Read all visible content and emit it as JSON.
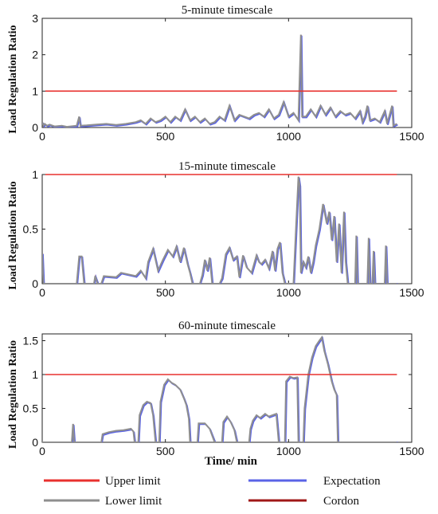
{
  "colors": {
    "upper": "#e8302e",
    "expectation": "#5a63e6",
    "lower": "#8f8f8f",
    "cordon": "#a01818"
  },
  "legend": {
    "upper": "Upper limit",
    "expectation": "Expectation",
    "lower": "Lower limit",
    "cordon": "Cordon"
  },
  "chart_data": [
    {
      "type": "line",
      "title": "5-minute timescale",
      "ylabel": "Load Regulation Ratio",
      "xlabel": "",
      "xlim": [
        0,
        1500
      ],
      "ylim": [
        0,
        3
      ],
      "xticks": [
        "0",
        "500",
        "1000",
        "1500"
      ],
      "yticks": [
        "0",
        "1",
        "2",
        "3"
      ],
      "threshold": 1,
      "series_points": [
        [
          0,
          0.15
        ],
        [
          5,
          0.05
        ],
        [
          10,
          0.1
        ],
        [
          20,
          0.05
        ],
        [
          30,
          0.08
        ],
        [
          50,
          0.03
        ],
        [
          80,
          0.05
        ],
        [
          100,
          0.02
        ],
        [
          140,
          0.05
        ],
        [
          150,
          0.3
        ],
        [
          155,
          0.05
        ],
        [
          180,
          0.06
        ],
        [
          220,
          0.08
        ],
        [
          260,
          0.1
        ],
        [
          300,
          0.07
        ],
        [
          340,
          0.1
        ],
        [
          380,
          0.15
        ],
        [
          400,
          0.2
        ],
        [
          420,
          0.1
        ],
        [
          440,
          0.25
        ],
        [
          460,
          0.15
        ],
        [
          480,
          0.2
        ],
        [
          500,
          0.3
        ],
        [
          520,
          0.15
        ],
        [
          540,
          0.3
        ],
        [
          560,
          0.2
        ],
        [
          580,
          0.5
        ],
        [
          600,
          0.2
        ],
        [
          620,
          0.3
        ],
        [
          640,
          0.15
        ],
        [
          660,
          0.25
        ],
        [
          680,
          0.1
        ],
        [
          700,
          0.15
        ],
        [
          720,
          0.3
        ],
        [
          740,
          0.2
        ],
        [
          760,
          0.6
        ],
        [
          780,
          0.2
        ],
        [
          800,
          0.35
        ],
        [
          820,
          0.3
        ],
        [
          840,
          0.25
        ],
        [
          860,
          0.35
        ],
        [
          880,
          0.4
        ],
        [
          900,
          0.3
        ],
        [
          920,
          0.5
        ],
        [
          940,
          0.25
        ],
        [
          960,
          0.35
        ],
        [
          980,
          0.7
        ],
        [
          1000,
          0.3
        ],
        [
          1020,
          0.4
        ],
        [
          1040,
          0.2
        ],
        [
          1050,
          2.55
        ],
        [
          1055,
          0.3
        ],
        [
          1070,
          0.3
        ],
        [
          1090,
          0.5
        ],
        [
          1110,
          0.3
        ],
        [
          1130,
          0.6
        ],
        [
          1150,
          0.35
        ],
        [
          1170,
          0.55
        ],
        [
          1190,
          0.3
        ],
        [
          1210,
          0.45
        ],
        [
          1230,
          0.35
        ],
        [
          1250,
          0.4
        ],
        [
          1270,
          0.25
        ],
        [
          1290,
          0.45
        ],
        [
          1300,
          0.15
        ],
        [
          1310,
          0.3
        ],
        [
          1320,
          0.6
        ],
        [
          1330,
          0.2
        ],
        [
          1350,
          0.25
        ],
        [
          1370,
          0.15
        ],
        [
          1390,
          0.45
        ],
        [
          1400,
          0.1
        ],
        [
          1420,
          0.6
        ],
        [
          1425,
          0.05
        ],
        [
          1440,
          0.1
        ]
      ]
    },
    {
      "type": "line",
      "title": "15-minute timescale",
      "ylabel": "Load Regulation Ratio",
      "xlabel": "",
      "xlim": [
        0,
        1500
      ],
      "ylim": [
        0,
        1
      ],
      "xticks": [
        "0",
        "500",
        "1000",
        "1500"
      ],
      "yticks": [
        "0",
        "0.5",
        "1"
      ],
      "threshold": 1,
      "series_points": [
        [
          0,
          0.28
        ],
        [
          5,
          0
        ],
        [
          140,
          0
        ],
        [
          150,
          0.25
        ],
        [
          160,
          0.25
        ],
        [
          170,
          0
        ],
        [
          210,
          0
        ],
        [
          215,
          0.07
        ],
        [
          225,
          0
        ],
        [
          240,
          0
        ],
        [
          250,
          0.07
        ],
        [
          300,
          0.06
        ],
        [
          320,
          0.1
        ],
        [
          380,
          0.07
        ],
        [
          400,
          0.12
        ],
        [
          420,
          0.05
        ],
        [
          430,
          0.2
        ],
        [
          450,
          0.32
        ],
        [
          470,
          0.12
        ],
        [
          490,
          0.22
        ],
        [
          510,
          0.31
        ],
        [
          530,
          0.25
        ],
        [
          545,
          0.34
        ],
        [
          560,
          0.2
        ],
        [
          575,
          0.33
        ],
        [
          590,
          0.18
        ],
        [
          600,
          0.1
        ],
        [
          610,
          0
        ],
        [
          640,
          0
        ],
        [
          650,
          0.08
        ],
        [
          660,
          0.22
        ],
        [
          670,
          0.12
        ],
        [
          680,
          0.24
        ],
        [
          690,
          0
        ],
        [
          720,
          0
        ],
        [
          730,
          0.05
        ],
        [
          745,
          0.27
        ],
        [
          760,
          0.33
        ],
        [
          775,
          0.22
        ],
        [
          790,
          0.25
        ],
        [
          800,
          0.06
        ],
        [
          815,
          0.26
        ],
        [
          830,
          0.15
        ],
        [
          850,
          0.1
        ],
        [
          870,
          0.26
        ],
        [
          880,
          0.2
        ],
        [
          890,
          0.18
        ],
        [
          905,
          0.22
        ],
        [
          920,
          0.14
        ],
        [
          935,
          0.3
        ],
        [
          945,
          0.12
        ],
        [
          955,
          0.32
        ],
        [
          965,
          0.38
        ],
        [
          975,
          0.1
        ],
        [
          985,
          0
        ],
        [
          1020,
          0
        ],
        [
          1030,
          0.5
        ],
        [
          1040,
          0.98
        ],
        [
          1045,
          0.9
        ],
        [
          1050,
          0.1
        ],
        [
          1060,
          0.2
        ],
        [
          1070,
          0.15
        ],
        [
          1080,
          0.25
        ],
        [
          1090,
          0.1
        ],
        [
          1100,
          0.2
        ],
        [
          1110,
          0.35
        ],
        [
          1125,
          0.5
        ],
        [
          1140,
          0.73
        ],
        [
          1155,
          0.55
        ],
        [
          1165,
          0.66
        ],
        [
          1175,
          0.4
        ],
        [
          1185,
          0.62
        ],
        [
          1195,
          0.2
        ],
        [
          1205,
          0.55
        ],
        [
          1215,
          0.1
        ],
        [
          1225,
          0.66
        ],
        [
          1232,
          0.2
        ],
        [
          1240,
          0
        ],
        [
          1270,
          0
        ],
        [
          1275,
          0.44
        ],
        [
          1280,
          0
        ],
        [
          1320,
          0
        ],
        [
          1325,
          0.42
        ],
        [
          1330,
          0
        ],
        [
          1340,
          0
        ],
        [
          1345,
          0.3
        ],
        [
          1350,
          0
        ],
        [
          1390,
          0
        ],
        [
          1395,
          0.35
        ],
        [
          1400,
          0
        ],
        [
          1440,
          0
        ]
      ]
    },
    {
      "type": "line",
      "title": "60-minute timescale",
      "ylabel": "Load Regulation Ratio",
      "xlabel": "Time/ min",
      "xlim": [
        0,
        1500
      ],
      "ylim": [
        0,
        1.6
      ],
      "xticks": [
        "0",
        "500",
        "1000",
        "1500"
      ],
      "yticks": [
        "0",
        "0.5",
        "1",
        "1.5"
      ],
      "threshold": 1,
      "series_points": [
        [
          0,
          0
        ],
        [
          120,
          0
        ],
        [
          125,
          0.27
        ],
        [
          130,
          0
        ],
        [
          240,
          0
        ],
        [
          245,
          0.12
        ],
        [
          270,
          0.15
        ],
        [
          300,
          0.17
        ],
        [
          330,
          0.18
        ],
        [
          360,
          0.2
        ],
        [
          370,
          0.16
        ],
        [
          375,
          0
        ],
        [
          390,
          0
        ],
        [
          395,
          0.4
        ],
        [
          410,
          0.55
        ],
        [
          425,
          0.6
        ],
        [
          440,
          0.58
        ],
        [
          450,
          0.4
        ],
        [
          460,
          0
        ],
        [
          475,
          0
        ],
        [
          480,
          0.6
        ],
        [
          495,
          0.85
        ],
        [
          510,
          0.93
        ],
        [
          525,
          0.88
        ],
        [
          540,
          0.85
        ],
        [
          560,
          0.78
        ],
        [
          575,
          0.65
        ],
        [
          585,
          0.55
        ],
        [
          595,
          0.35
        ],
        [
          600,
          0
        ],
        [
          630,
          0
        ],
        [
          635,
          0.28
        ],
        [
          660,
          0.28
        ],
        [
          680,
          0.2
        ],
        [
          700,
          0
        ],
        [
          730,
          0
        ],
        [
          735,
          0.3
        ],
        [
          750,
          0.38
        ],
        [
          765,
          0.3
        ],
        [
          780,
          0.18
        ],
        [
          790,
          0
        ],
        [
          840,
          0
        ],
        [
          845,
          0.2
        ],
        [
          855,
          0.32
        ],
        [
          870,
          0.4
        ],
        [
          885,
          0.36
        ],
        [
          905,
          0.42
        ],
        [
          920,
          0.38
        ],
        [
          935,
          0.4
        ],
        [
          950,
          0.42
        ],
        [
          960,
          0
        ],
        [
          985,
          0
        ],
        [
          990,
          0.9
        ],
        [
          1005,
          0.97
        ],
        [
          1020,
          0.95
        ],
        [
          1035,
          0.96
        ],
        [
          1040,
          0
        ],
        [
          1060,
          0
        ],
        [
          1065,
          0.5
        ],
        [
          1080,
          1
        ],
        [
          1095,
          1.25
        ],
        [
          1110,
          1.42
        ],
        [
          1125,
          1.5
        ],
        [
          1135,
          1.55
        ],
        [
          1145,
          1.35
        ],
        [
          1160,
          1.15
        ],
        [
          1175,
          0.9
        ],
        [
          1185,
          0.78
        ],
        [
          1195,
          0.7
        ],
        [
          1200,
          0
        ],
        [
          1440,
          0
        ]
      ]
    }
  ]
}
